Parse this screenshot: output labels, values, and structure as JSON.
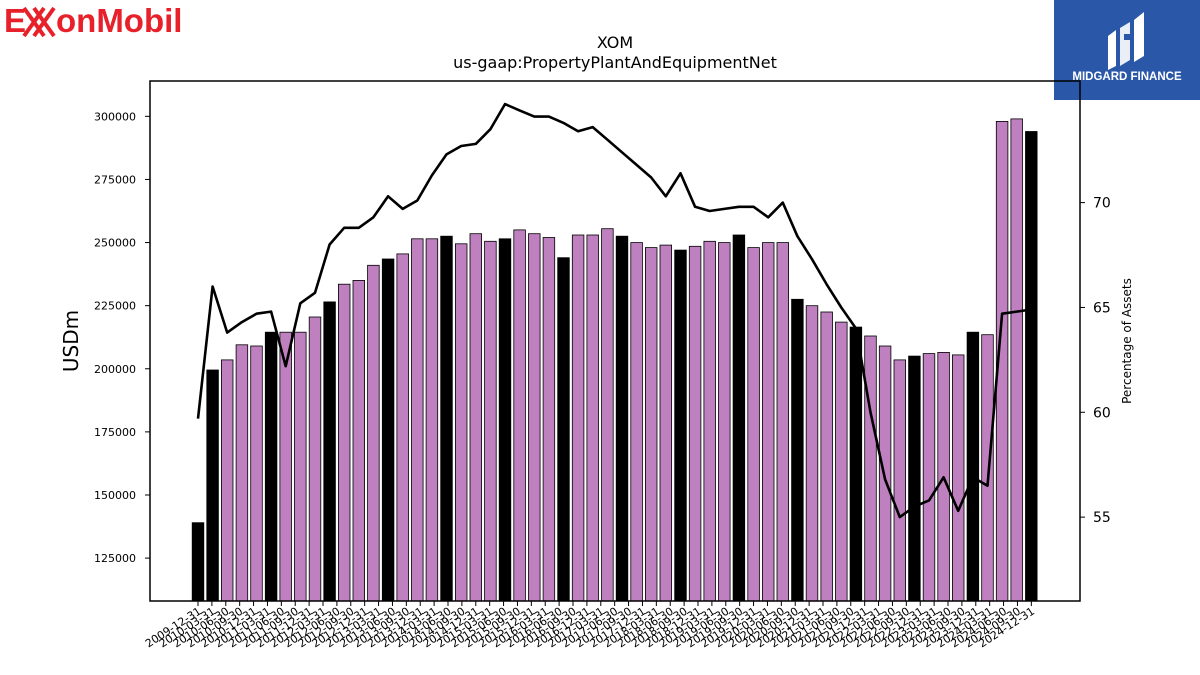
{
  "brand": {
    "company_logo_text": "ExxonMobil",
    "company_logo_color": "#e8202a",
    "publisher_logo_text": "MIDGARD FINANCE",
    "publisher_bg_color": "#2b57a8"
  },
  "chart_data": {
    "type": "bar",
    "title": "XOM",
    "subtitle": "us-gaap:PropertyPlantAndEquipmentNet",
    "ylabel": "USDm",
    "y2label": "Percentage of Assets",
    "ylim": [
      108000,
      314000
    ],
    "y2lim": [
      51,
      75.8
    ],
    "yticks": [
      125000,
      150000,
      175000,
      200000,
      225000,
      250000,
      275000,
      300000
    ],
    "y2ticks": [
      55,
      60,
      65,
      70
    ],
    "bar_color_quarterly": "#bf80bf",
    "bar_color_annual": "#000000",
    "line_color": "#000000",
    "x_tick_labels": [
      "2009-12-31",
      "2010-03-31",
      "2010-06-30",
      "2010-09-30",
      "2010-12-31",
      "2011-03-31",
      "2011-06-30",
      "2011-09-30",
      "2011-12-31",
      "2012-03-31",
      "2012-06-30",
      "2012-09-30",
      "2012-12-31",
      "2013-03-31",
      "2013-06-30",
      "2013-09-30",
      "2013-12-31",
      "2014-03-31",
      "2014-06-30",
      "2014-09-30",
      "2014-12-31",
      "2015-03-31",
      "2015-06-30",
      "2015-09-30",
      "2015-12-31",
      "2016-03-31",
      "2016-06-30",
      "2016-09-30",
      "2016-12-31",
      "2017-03-31",
      "2017-06-30",
      "2017-09-30",
      "2017-12-31",
      "2018-03-31",
      "2018-06-30",
      "2018-09-30",
      "2018-12-31",
      "2019-03-31",
      "2019-06-30",
      "2019-09-30",
      "2019-12-31",
      "2020-03-31",
      "2020-06-30",
      "2020-09-30",
      "2020-12-31",
      "2021-03-31",
      "2021-06-30",
      "2021-09-30",
      "2021-12-31",
      "2022-03-31",
      "2022-06-30",
      "2022-09-30",
      "2022-12-31",
      "2023-03-31",
      "2023-06-30",
      "2023-09-30",
      "2023-12-31",
      "2024-03-31",
      "2024-06-30",
      "2024-09-30",
      "2024-12-31"
    ],
    "series": [
      {
        "values": [
          139000,
          199500,
          203500,
          209500,
          209000,
          214500,
          214500,
          214500,
          220500,
          226500,
          233500,
          235000,
          241000,
          243500,
          245500,
          251500,
          251500,
          252500,
          249500,
          253500,
          250500,
          251500,
          255000,
          253500,
          252000,
          244000,
          253000,
          253000,
          255500,
          252500,
          250000,
          248000,
          249000,
          247000,
          248500,
          250500,
          250000,
          253000,
          248000,
          250000,
          250000,
          227500,
          225000,
          222500,
          218500,
          216500,
          213000,
          209000,
          203500,
          205000,
          206000,
          206500,
          205500,
          214500,
          213500,
          298000,
          299000,
          294000
        ],
        "annual_flags": [
          1,
          1,
          0,
          0,
          0,
          1,
          0,
          0,
          0,
          1,
          0,
          0,
          0,
          1,
          0,
          0,
          0,
          1,
          0,
          0,
          0,
          1,
          0,
          0,
          0,
          1,
          0,
          0,
          0,
          1,
          0,
          0,
          0,
          1,
          0,
          0,
          0,
          1,
          0,
          0,
          0,
          1,
          0,
          0,
          0,
          1,
          0,
          0,
          0,
          1,
          0,
          0,
          0,
          1,
          0,
          0,
          0,
          1
        ]
      },
      {
        "type": "line",
        "values": [
          59.7,
          66.0,
          63.8,
          64.3,
          64.7,
          64.8,
          62.2,
          65.2,
          65.7,
          68.0,
          68.8,
          68.8,
          69.3,
          70.3,
          69.7,
          70.1,
          71.3,
          72.3,
          72.7,
          72.8,
          73.5,
          74.7,
          74.4,
          74.1,
          74.1,
          73.8,
          73.4,
          73.6,
          73.0,
          72.4,
          71.8,
          71.2,
          70.3,
          71.4,
          69.8,
          69.6,
          69.7,
          69.8,
          69.8,
          69.3,
          70.0,
          68.4,
          67.3,
          66.1,
          65.0,
          64.0,
          60.0,
          56.8,
          55.0,
          55.5,
          55.8,
          56.9,
          55.3,
          56.9,
          56.5,
          64.7,
          64.8,
          64.9
        ]
      }
    ],
    "legend": "none",
    "grid": false
  }
}
